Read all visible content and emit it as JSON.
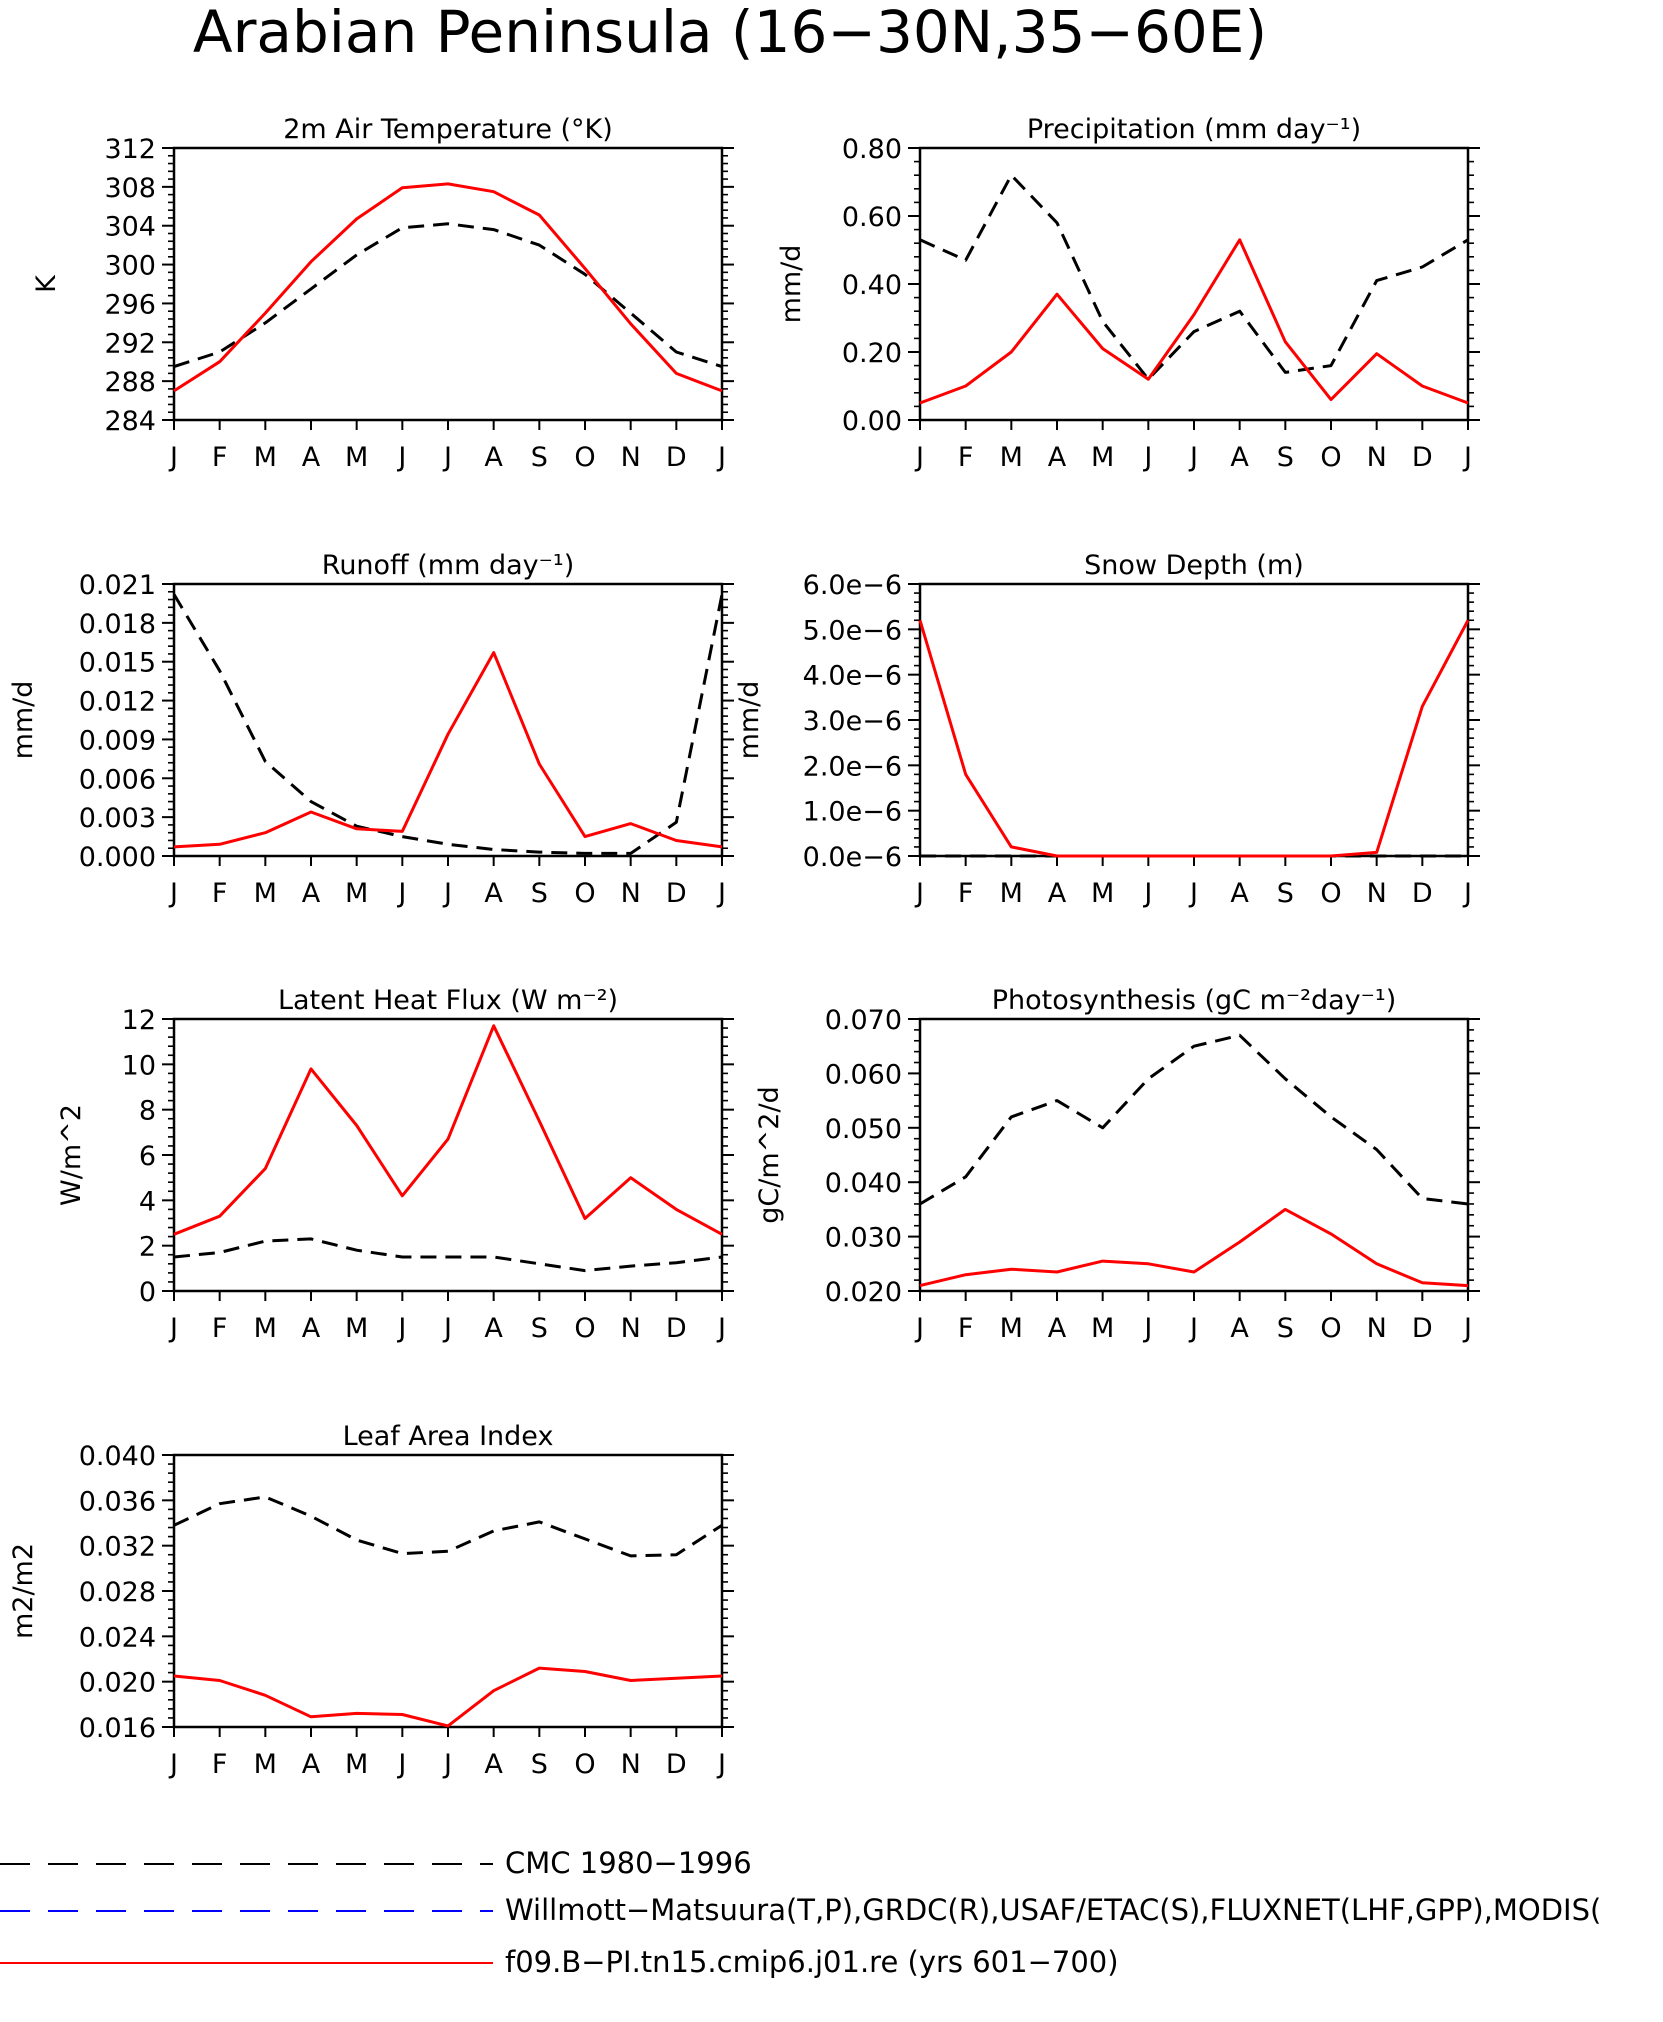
{
  "page": {
    "title": "Arabian Peninsula (16−30N,35−60E)"
  },
  "months": [
    "J",
    "F",
    "M",
    "A",
    "M",
    "J",
    "J",
    "A",
    "S",
    "O",
    "N",
    "D",
    "J"
  ],
  "legend": [
    {
      "label": "CMC 1980−1996",
      "color": "#000000",
      "dash": "dashed"
    },
    {
      "label": "Willmott−Matsuura(T,P),GRDC(R),USAF/ETAC(S),FLUXNET(LHF,GPP),MODIS(",
      "color": "#0000ff",
      "dash": "dashed"
    },
    {
      "label": "f09.B−PI.tn15.cmip6.j01.re (yrs 601−700)",
      "color": "#ff0000",
      "dash": "solid"
    }
  ],
  "chart_data": [
    {
      "type": "line",
      "title": "2m Air Temperature (°K)",
      "ylabel": "K",
      "ylim": [
        284,
        312
      ],
      "yticks": [
        "284",
        "288",
        "292",
        "296",
        "300",
        "304",
        "308",
        "312"
      ],
      "series": [
        {
          "name": "CMC 1980−1996",
          "color": "#000000",
          "dash": "dashed",
          "values": [
            289.5,
            291,
            294,
            297.5,
            301,
            303.8,
            304.2,
            303.6,
            302,
            299,
            295,
            291,
            289.5
          ]
        },
        {
          "name": "f09.B−PI.tn15.cmip6.j01.re (yrs 601−700)",
          "color": "#ff0000",
          "dash": "solid",
          "values": [
            287,
            290,
            295,
            300.3,
            304.7,
            307.9,
            308.3,
            307.5,
            305.1,
            299.6,
            293.9,
            288.8,
            287
          ]
        }
      ]
    },
    {
      "type": "line",
      "title": "Precipitation (mm day⁻¹)",
      "ylabel": "mm/d",
      "ylim": [
        0,
        0.8
      ],
      "yticks": [
        "0.00",
        "0.20",
        "0.40",
        "0.60",
        "0.80"
      ],
      "series": [
        {
          "name": "CMC 1980−1996",
          "color": "#000000",
          "dash": "dashed",
          "values": [
            0.53,
            0.47,
            0.72,
            0.58,
            0.29,
            0.12,
            0.26,
            0.32,
            0.14,
            0.16,
            0.41,
            0.45,
            0.53
          ]
        },
        {
          "name": "f09.B−PI.tn15.cmip6.j01.re (yrs 601−700)",
          "color": "#ff0000",
          "dash": "solid",
          "values": [
            0.05,
            0.1,
            0.2,
            0.37,
            0.21,
            0.12,
            0.31,
            0.53,
            0.23,
            0.06,
            0.195,
            0.1,
            0.05
          ]
        }
      ]
    },
    {
      "type": "line",
      "title": "Runoff (mm day⁻¹)",
      "ylabel": "mm/d",
      "ylim": [
        0,
        0.021
      ],
      "yticks": [
        "0.000",
        "0.003",
        "0.006",
        "0.009",
        "0.012",
        "0.015",
        "0.018",
        "0.021"
      ],
      "series": [
        {
          "name": "CMC 1980−1996",
          "color": "#000000",
          "dash": "dashed",
          "values": [
            0.0202,
            0.0143,
            0.0073,
            0.0042,
            0.0023,
            0.0015,
            0.0009,
            0.0005,
            0.0003,
            0.0002,
            0.0002,
            0.0026,
            0.0202
          ]
        },
        {
          "name": "f09.B−PI.tn15.cmip6.j01.re (yrs 601−700)",
          "color": "#ff0000",
          "dash": "solid",
          "values": [
            0.0007,
            0.0009,
            0.0018,
            0.0034,
            0.0021,
            0.0019,
            0.0094,
            0.0157,
            0.0071,
            0.0015,
            0.0025,
            0.0012,
            0.0007
          ]
        }
      ]
    },
    {
      "type": "line",
      "title": "Snow Depth (m)",
      "ylabel": "mm/d",
      "ylim": [
        0,
        6
      ],
      "yunit": "e−6",
      "yticks": [
        "0.0e−6",
        "1.0e−6",
        "2.0e−6",
        "3.0e−6",
        "4.0e−6",
        "5.0e−6",
        "6.0e−6"
      ],
      "series": [
        {
          "name": "CMC 1980−1996",
          "color": "#000000",
          "dash": "dashed",
          "values": [
            0,
            0,
            0,
            0,
            0,
            0,
            0,
            0,
            0,
            0,
            0,
            0,
            0
          ]
        },
        {
          "name": "f09.B−PI.tn15.cmip6.j01.re (yrs 601−700)",
          "color": "#ff0000",
          "dash": "solid",
          "values": [
            5.2,
            1.8,
            0.2,
            0,
            0,
            0,
            0,
            0,
            0,
            0,
            0.08,
            3.3,
            5.2
          ]
        }
      ]
    },
    {
      "type": "line",
      "title": "Latent Heat Flux (W m⁻²)",
      "ylabel": "W/m^2",
      "ylim": [
        0,
        12
      ],
      "yticks": [
        "0",
        "2",
        "4",
        "6",
        "8",
        "10",
        "12"
      ],
      "series": [
        {
          "name": "CMC 1980−1996",
          "color": "#000000",
          "dash": "dashed",
          "values": [
            1.5,
            1.7,
            2.2,
            2.3,
            1.8,
            1.5,
            1.5,
            1.5,
            1.2,
            0.9,
            1.1,
            1.25,
            1.5
          ]
        },
        {
          "name": "f09.B−PI.tn15.cmip6.j01.re (yrs 601−700)",
          "color": "#ff0000",
          "dash": "solid",
          "values": [
            2.5,
            3.3,
            5.4,
            9.8,
            7.3,
            4.2,
            6.7,
            11.7,
            7.5,
            3.2,
            5.0,
            3.6,
            2.5
          ]
        }
      ]
    },
    {
      "type": "line",
      "title": "Photosynthesis (gC m⁻²day⁻¹)",
      "ylabel": "gC/m^2/d",
      "ylim": [
        0.02,
        0.07
      ],
      "yticks": [
        "0.020",
        "0.030",
        "0.040",
        "0.050",
        "0.060",
        "0.070"
      ],
      "series": [
        {
          "name": "CMC 1980−1996",
          "color": "#000000",
          "dash": "dashed",
          "values": [
            0.036,
            0.041,
            0.052,
            0.055,
            0.05,
            0.059,
            0.065,
            0.067,
            0.059,
            0.052,
            0.046,
            0.037,
            0.036
          ]
        },
        {
          "name": "f09.B−PI.tn15.cmip6.j01.re (yrs 601−700)",
          "color": "#ff0000",
          "dash": "solid",
          "values": [
            0.021,
            0.023,
            0.024,
            0.0235,
            0.0255,
            0.025,
            0.0235,
            0.029,
            0.035,
            0.0305,
            0.025,
            0.0215,
            0.021
          ]
        }
      ]
    },
    {
      "type": "line",
      "title": "Leaf Area Index",
      "ylabel": "m2/m2",
      "ylim": [
        0.016,
        0.04
      ],
      "yticks": [
        "0.016",
        "0.020",
        "0.024",
        "0.028",
        "0.032",
        "0.036",
        "0.040"
      ],
      "series": [
        {
          "name": "CMC 1980−1996",
          "color": "#000000",
          "dash": "dashed",
          "values": [
            0.0338,
            0.0357,
            0.0363,
            0.0346,
            0.0325,
            0.0313,
            0.0315,
            0.0333,
            0.0341,
            0.0326,
            0.0311,
            0.0312,
            0.0338
          ]
        },
        {
          "name": "f09.B−PI.tn15.cmip6.j01.re (yrs 601−700)",
          "color": "#ff0000",
          "dash": "solid",
          "values": [
            0.0205,
            0.0201,
            0.0188,
            0.0169,
            0.0172,
            0.0171,
            0.0161,
            0.0192,
            0.0212,
            0.0209,
            0.0201,
            0.0203,
            0.0205
          ]
        }
      ]
    }
  ]
}
